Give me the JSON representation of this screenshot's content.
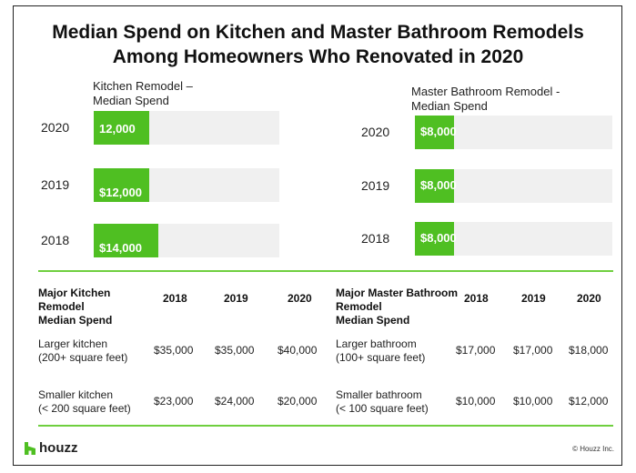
{
  "title_line1": "Median Spend on Kitchen and Master Bathroom Remodels",
  "title_line2": "Among Homeowners Who Renovated in 2020",
  "chart_data": [
    {
      "type": "bar",
      "title_lines": [
        "Kitchen Remodel –",
        "Median Spend"
      ],
      "categories": [
        "2020",
        "2019",
        "2018"
      ],
      "values": [
        12000,
        12000,
        14000
      ],
      "data_labels": [
        "12,000",
        "$12,000",
        "$14,000"
      ],
      "xlim": [
        0,
        40000
      ]
    },
    {
      "type": "bar",
      "title_lines": [
        "Master Bathroom Remodel -",
        "Median Spend"
      ],
      "categories": [
        "2020",
        "2019",
        "2018"
      ],
      "values": [
        8000,
        8000,
        8000
      ],
      "data_labels": [
        "$8,000",
        "$8,000",
        "$8,000"
      ],
      "xlim": [
        0,
        40000
      ]
    }
  ],
  "kitchen_table": {
    "header_lines": [
      "Major Kitchen",
      "Remodel",
      "Median Spend"
    ],
    "years": [
      "2018",
      "2019",
      "2020"
    ],
    "rows": [
      {
        "label_lines": [
          "Larger kitchen",
          "(200+ square feet)"
        ],
        "values": [
          "$35,000",
          "$35,000",
          "$40,000"
        ]
      },
      {
        "label_lines": [
          "Smaller kitchen",
          "(< 200 square feet)"
        ],
        "values": [
          "$23,000",
          "$24,000",
          "$20,000"
        ]
      }
    ]
  },
  "bath_table": {
    "header_lines": [
      "Major Master Bathroom",
      "Remodel",
      "Median Spend"
    ],
    "years": [
      "2018",
      "2019",
      "2020"
    ],
    "rows": [
      {
        "label_lines": [
          "Larger bathroom",
          "(100+ square feet)"
        ],
        "values": [
          "$17,000",
          "$17,000",
          "$18,000"
        ]
      },
      {
        "label_lines": [
          "Smaller bathroom",
          "(< 100 square feet)"
        ],
        "values": [
          "$10,000",
          "$10,000",
          "$12,000"
        ]
      }
    ]
  },
  "footer": {
    "logo_text": "houzz",
    "copyright": "© Houzz Inc."
  },
  "colors": {
    "bar": "#4fbf22",
    "track": "#f0f0f0",
    "rule": "#6fcf3f"
  }
}
